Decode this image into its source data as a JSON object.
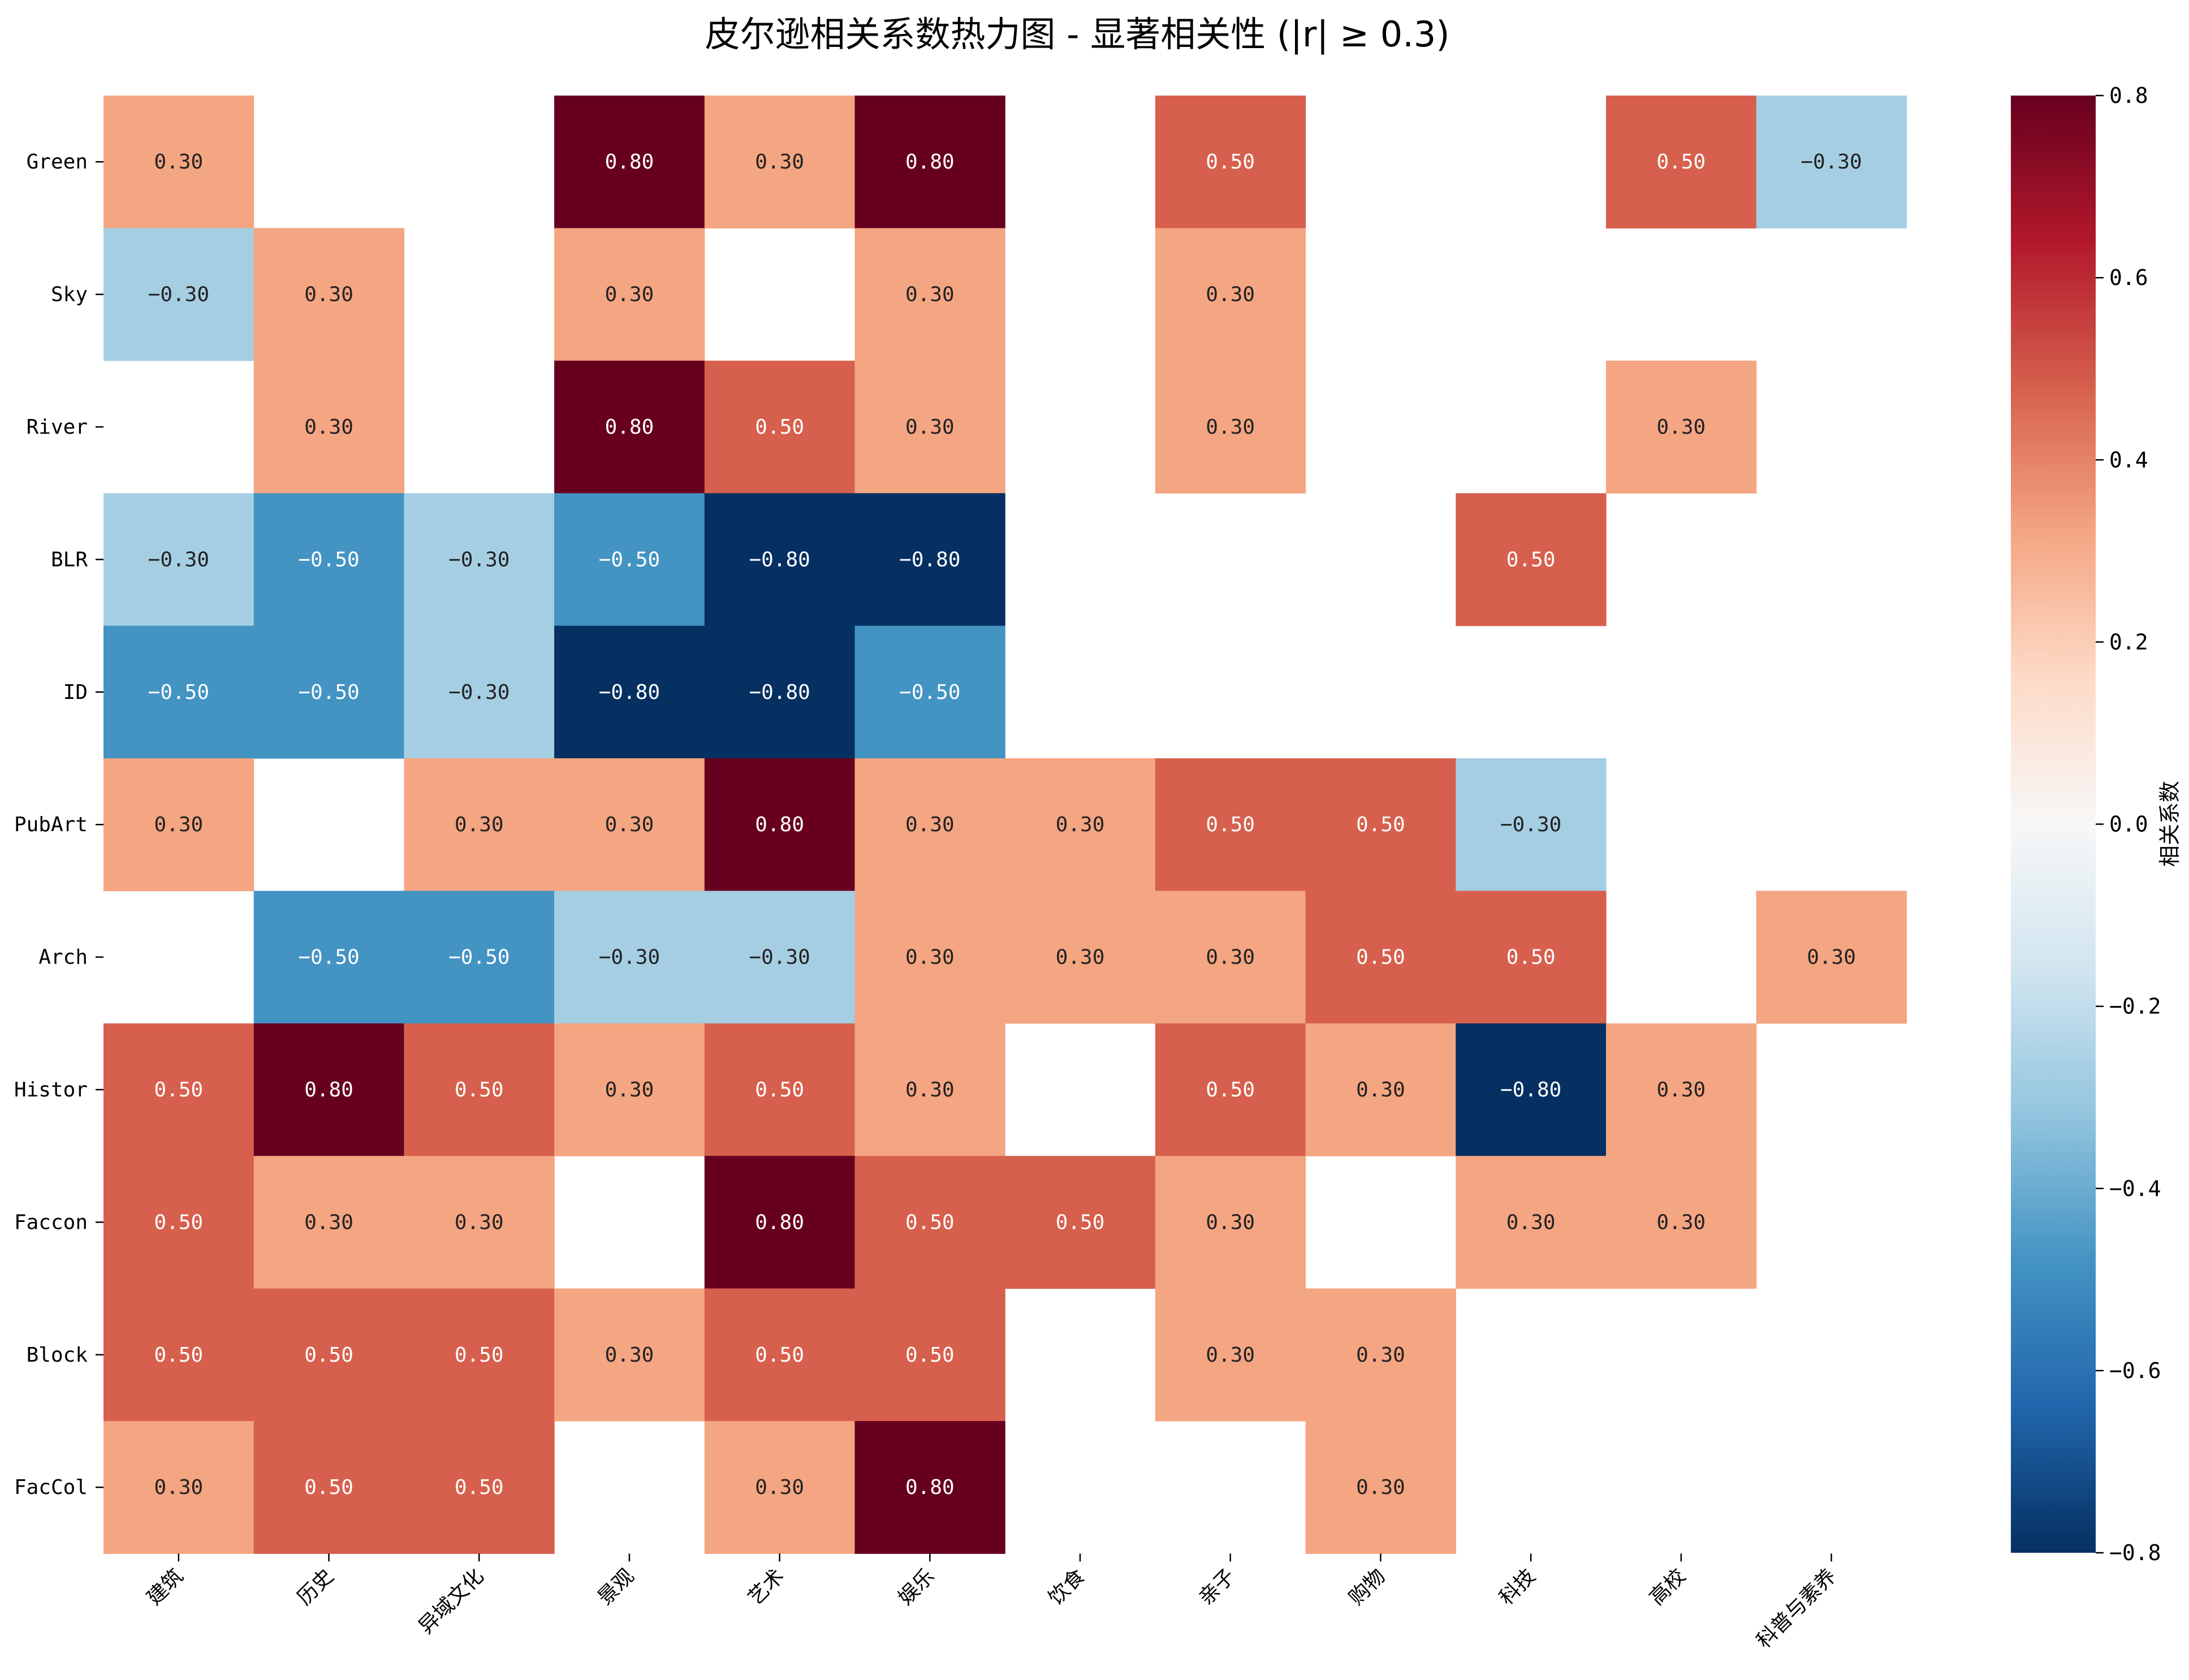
{
  "chart_data": {
    "type": "heatmap",
    "title": "皮尔逊相关系数热力图 - 显著相关性 (|r| ≥ 0.3)",
    "rows": [
      "Green",
      "Sky",
      "River",
      "BLR",
      "ID",
      "PubArt",
      "Arch",
      "Histor",
      "Faccon",
      "Block",
      "FacCol"
    ],
    "columns": [
      "建筑",
      "历史",
      "异域文化",
      "景观",
      "艺术",
      "娱乐",
      "饮食",
      "亲子",
      "购物",
      "科技",
      "高校",
      "科普与素养"
    ],
    "values": [
      [
        0.3,
        null,
        null,
        0.8,
        0.3,
        0.8,
        null,
        0.5,
        null,
        null,
        0.5,
        -0.3
      ],
      [
        -0.3,
        0.3,
        null,
        0.3,
        null,
        0.3,
        null,
        0.3,
        null,
        null,
        null,
        null
      ],
      [
        null,
        0.3,
        null,
        0.8,
        0.5,
        0.3,
        null,
        0.3,
        null,
        null,
        0.3,
        null
      ],
      [
        -0.3,
        -0.5,
        -0.3,
        -0.5,
        -0.8,
        -0.8,
        null,
        null,
        null,
        0.5,
        null,
        null
      ],
      [
        -0.5,
        -0.5,
        -0.3,
        -0.8,
        -0.8,
        -0.5,
        null,
        null,
        null,
        null,
        null,
        null
      ],
      [
        0.3,
        null,
        0.3,
        0.3,
        0.8,
        0.3,
        0.3,
        0.5,
        0.5,
        -0.3,
        null,
        null
      ],
      [
        null,
        -0.5,
        -0.5,
        -0.3,
        -0.3,
        0.3,
        0.3,
        0.3,
        0.5,
        0.5,
        null,
        0.3
      ],
      [
        0.5,
        0.8,
        0.5,
        0.3,
        0.5,
        0.3,
        null,
        0.5,
        0.3,
        -0.8,
        0.3,
        null
      ],
      [
        0.5,
        0.3,
        0.3,
        null,
        0.8,
        0.5,
        0.5,
        0.3,
        null,
        0.3,
        0.3,
        null
      ],
      [
        0.5,
        0.5,
        0.5,
        0.3,
        0.5,
        0.5,
        null,
        0.3,
        0.3,
        null,
        null,
        null
      ],
      [
        0.3,
        0.5,
        0.5,
        null,
        0.3,
        0.8,
        null,
        null,
        0.3,
        null,
        null,
        null
      ]
    ],
    "value_format": "0.00",
    "colormap": "RdBu_r",
    "vmin": -0.8,
    "vmax": 0.8,
    "colorbar": {
      "label": "相关系数",
      "ticks": [
        0.8,
        0.6,
        0.4,
        0.2,
        0.0,
        -0.2,
        -0.4,
        -0.6,
        -0.8
      ],
      "tick_labels": [
        "0.8",
        "0.6",
        "0.4",
        "0.2",
        "0.0",
        "−0.2",
        "−0.4",
        "−0.6",
        "−0.8"
      ]
    },
    "colors": {
      "0.8": "#67001f",
      "0.5": "#d6604d",
      "0.3": "#f4a582",
      "-0.3": "#a6cee3",
      "-0.5": "#4393c3",
      "-0.8": "#053061"
    }
  }
}
